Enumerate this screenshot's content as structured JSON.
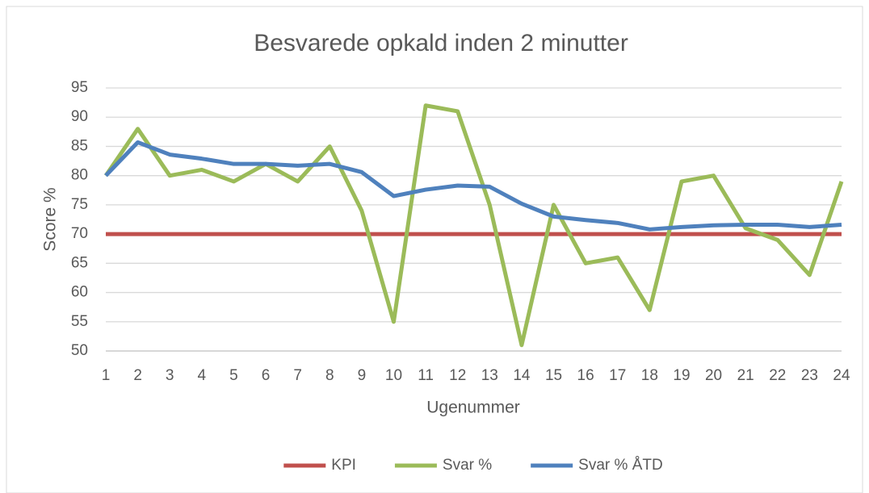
{
  "chart_data": {
    "type": "line",
    "title": "Besvarede opkald inden 2 minutter",
    "x_label": "Ugenummer",
    "y_label": "Score %",
    "x": [
      1,
      2,
      3,
      4,
      5,
      6,
      7,
      8,
      9,
      10,
      11,
      12,
      13,
      14,
      15,
      16,
      17,
      18,
      19,
      20,
      21,
      22,
      23,
      24
    ],
    "series": [
      {
        "name": "KPI",
        "color": "#c0504d",
        "values": [
          70,
          70,
          70,
          70,
          70,
          70,
          70,
          70,
          70,
          70,
          70,
          70,
          70,
          70,
          70,
          70,
          70,
          70,
          70,
          70,
          70,
          70,
          70,
          70
        ]
      },
      {
        "name": "Svar %",
        "color": "#9bbb59",
        "values": [
          80,
          88,
          80,
          81,
          79,
          82,
          79,
          85,
          74,
          55,
          92,
          91,
          75,
          51,
          75,
          65,
          66,
          57,
          79,
          80,
          71,
          69,
          63,
          79
        ]
      },
      {
        "name": "Svar % ÅTD",
        "color": "#4f81bd",
        "values": [
          80,
          85.7,
          83.6,
          82.9,
          82,
          82,
          81.7,
          82,
          80.6,
          76.5,
          77.6,
          78.3,
          78.1,
          75.2,
          73,
          72.4,
          71.9,
          70.8,
          71.2,
          71.5,
          71.6,
          71.6,
          71.2,
          71.6
        ]
      }
    ],
    "xlim": [
      1,
      24
    ],
    "xticks": [
      1,
      2,
      3,
      4,
      5,
      6,
      7,
      8,
      9,
      10,
      11,
      12,
      13,
      14,
      15,
      16,
      17,
      18,
      19,
      20,
      21,
      22,
      23,
      24
    ],
    "ylim": [
      50,
      95
    ],
    "yticks": [
      50,
      55,
      60,
      65,
      70,
      75,
      80,
      85,
      90,
      95
    ],
    "grid": true,
    "legend": "bottom"
  }
}
